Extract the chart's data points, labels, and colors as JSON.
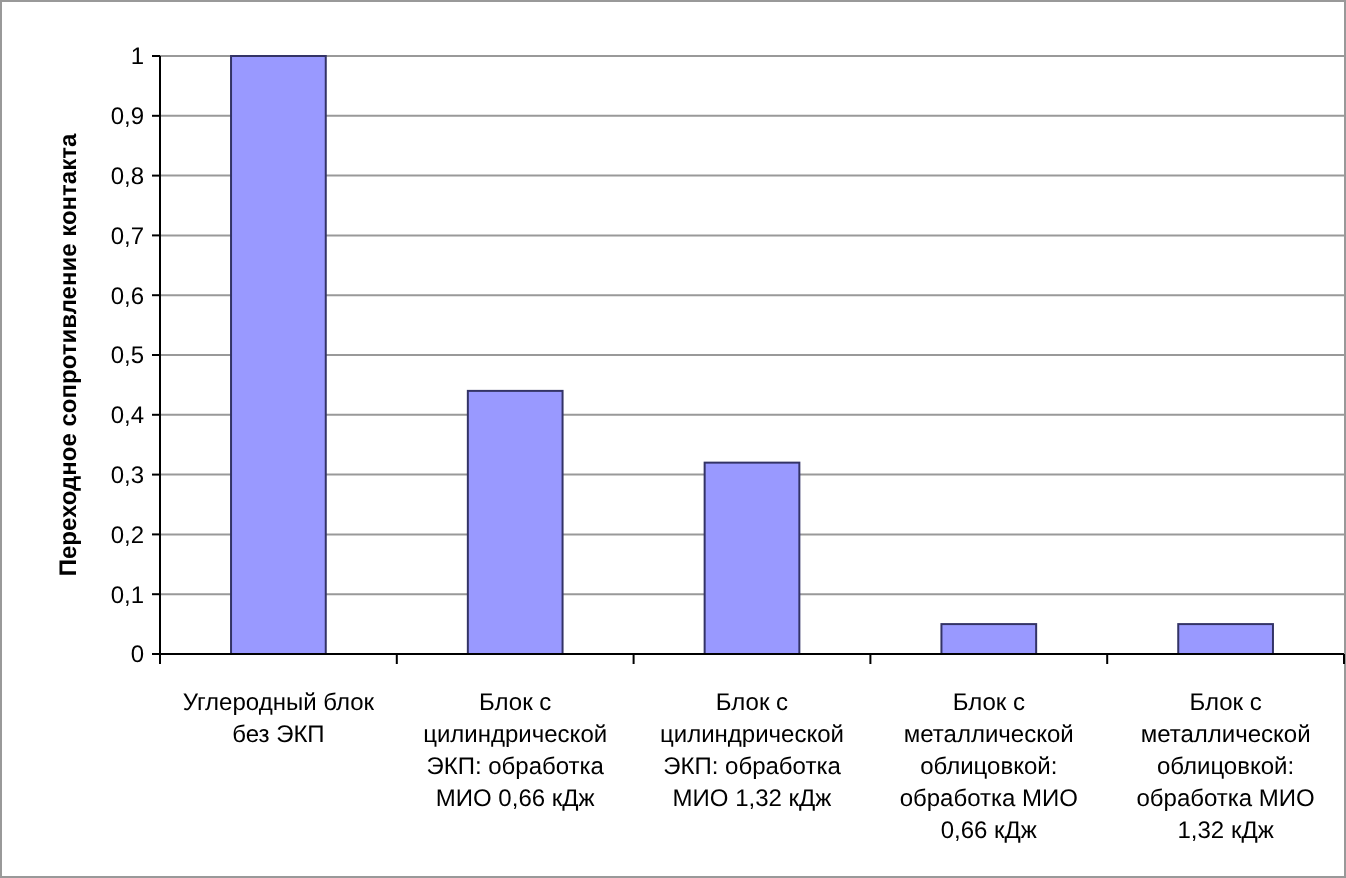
{
  "chart_data": {
    "type": "bar",
    "ylabel": "Переходное сопротивление контакта",
    "categories": [
      "Углеродный блок без ЭКП",
      "Блок с цилиндрической ЭКП: обработка МИО 0,66 кДж",
      "Блок с цилиндрической ЭКП: обработка МИО 1,32 кДж",
      "Блок с металлической облицовкой: обработка МИО 0,66 кДж",
      "Блок с металлической облицовкой: обработка МИО 1,32 кДж"
    ],
    "values": [
      1,
      0.44,
      0.32,
      0.05,
      0.05
    ],
    "color": "#9999ff",
    "ylim": [
      0,
      1
    ],
    "yticks": [
      0,
      {
        "value": 0.1,
        "label": "0,1"
      },
      {
        "value": 0.2,
        "label": "0,2"
      },
      {
        "value": 0.3,
        "label": "0,3"
      },
      {
        "value": 0.4,
        "label": "0,4"
      },
      {
        "value": 0.5,
        "label": "0,5"
      },
      {
        "value": 0.6,
        "label": "0,6"
      },
      {
        "value": 0.7,
        "label": "0,7"
      },
      {
        "value": 0.8,
        "label": "0,8"
      },
      {
        "value": 0.9,
        "label": "0,9"
      },
      1
    ],
    "grid": "y"
  }
}
